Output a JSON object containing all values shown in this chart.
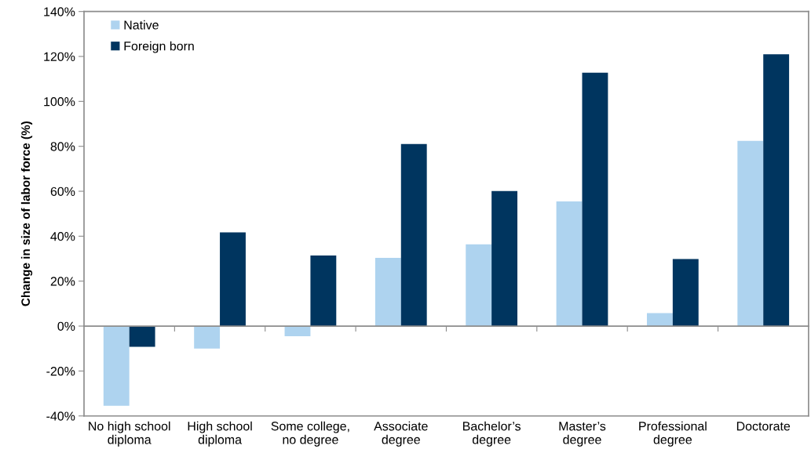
{
  "chart_data": {
    "type": "bar",
    "ylabel": "Change in size of labor force (%)",
    "categories": [
      "No high school\ndiploma",
      "High school\ndiploma",
      "Some college,\nno degree",
      "Associate\ndegree",
      "Bachelor’s\ndegree",
      "Master’s\ndegree",
      "Professional\ndegree",
      "Doctorate"
    ],
    "series": [
      {
        "name": "Native",
        "color": "#aed3ef",
        "values": [
          -35.5,
          -10,
          -4.5,
          30.4,
          36.4,
          55.5,
          5.8,
          82.4
        ]
      },
      {
        "name": "Foreign born",
        "color": "#00355f",
        "values": [
          -9.2,
          41.7,
          31.4,
          81,
          60.1,
          112.8,
          29.8,
          121
        ]
      }
    ],
    "ylim": [
      -40,
      140
    ],
    "yticks": [
      {
        "value": -40,
        "label": "-40%"
      },
      {
        "value": -20,
        "label": "-20%"
      },
      {
        "value": 0,
        "label": "0%"
      },
      {
        "value": 20,
        "label": "20%"
      },
      {
        "value": 40,
        "label": "40%"
      },
      {
        "value": 60,
        "label": "60%"
      },
      {
        "value": 80,
        "label": "80%"
      },
      {
        "value": 100,
        "label": "100%"
      },
      {
        "value": 120,
        "label": "120%"
      },
      {
        "value": 140,
        "label": "140%"
      }
    ],
    "ref_lines": [
      {
        "axis": "y",
        "value": 0,
        "color": "#8c8c8c"
      }
    ],
    "grid": false,
    "legend": "top left"
  }
}
